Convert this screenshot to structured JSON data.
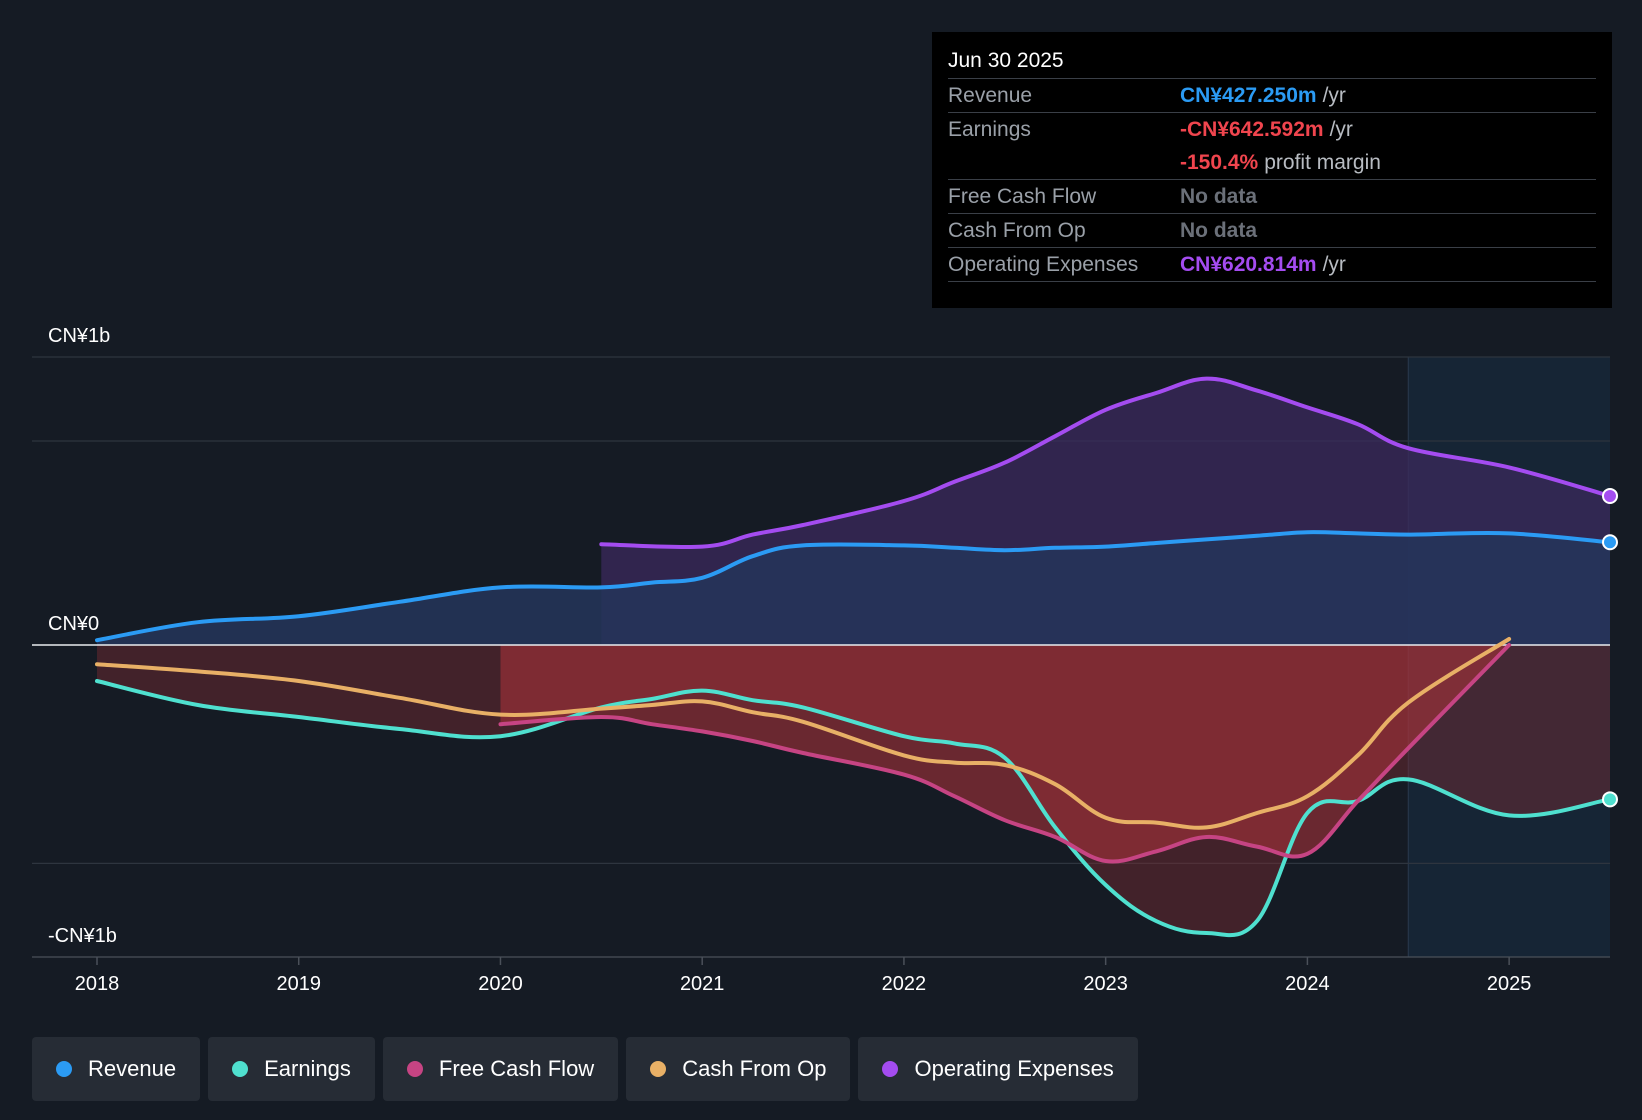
{
  "tooltip": {
    "date": "Jun 30 2025",
    "rows": [
      {
        "label": "Revenue",
        "value": "CN¥427.250m",
        "unit": "/yr",
        "color": "#2b9bf4"
      },
      {
        "label": "Earnings",
        "value": "-CN¥642.592m",
        "unit": "/yr",
        "color": "#f0454e"
      },
      {
        "label": "",
        "value": "-150.4%",
        "unit": "profit margin",
        "color": "#f0454e"
      },
      {
        "label": "Free Cash Flow",
        "value": "No data",
        "unit": "",
        "color": "#6b7079"
      },
      {
        "label": "Cash From Op",
        "value": "No data",
        "unit": "",
        "color": "#6b7079"
      },
      {
        "label": "Operating Expenses",
        "value": "CN¥620.814m",
        "unit": "/yr",
        "color": "#a44cf0"
      }
    ]
  },
  "legend": [
    {
      "label": "Revenue",
      "color": "#2b9bf4"
    },
    {
      "label": "Earnings",
      "color": "#4fe0cf"
    },
    {
      "label": "Free Cash Flow",
      "color": "#c64483"
    },
    {
      "label": "Cash From Op",
      "color": "#e8b066"
    },
    {
      "label": "Operating Expenses",
      "color": "#a44cf0"
    }
  ],
  "chart_data": {
    "type": "line",
    "title": "",
    "currency": "CNY",
    "y_unit": "CN¥ millions",
    "ylim": [
      -1300,
      1200
    ],
    "y_tick_labels": [
      {
        "value": 1200,
        "label": "CN¥1b"
      },
      {
        "value": 0,
        "label": "CN¥0"
      },
      {
        "value": -1300,
        "label": "-CN¥1b"
      }
    ],
    "x_range": [
      2017.68,
      2025.5
    ],
    "x_ticks": [
      2018,
      2019,
      2020,
      2021,
      2022,
      2023,
      2024,
      2025
    ],
    "forecast_start": 2024.5,
    "series": [
      {
        "name": "Revenue",
        "color": "#2b9bf4",
        "x": [
          2018,
          2018.5,
          2019,
          2019.5,
          2020,
          2020.5,
          2020.75,
          2021,
          2021.25,
          2021.5,
          2022,
          2022.25,
          2022.5,
          2022.75,
          2023,
          2023.25,
          2023.5,
          2023.75,
          2024,
          2024.25,
          2024.5,
          2025,
          2025.5
        ],
        "y": [
          20,
          95,
          120,
          180,
          240,
          240,
          260,
          280,
          370,
          415,
          415,
          405,
          395,
          405,
          410,
          425,
          440,
          455,
          470,
          465,
          460,
          465,
          428
        ]
      },
      {
        "name": "Earnings",
        "color": "#4fe0cf",
        "x": [
          2018,
          2018.5,
          2019,
          2019.5,
          2020,
          2020.5,
          2020.75,
          2021,
          2021.25,
          2021.5,
          2022,
          2022.25,
          2022.5,
          2022.75,
          2023,
          2023.25,
          2023.5,
          2023.75,
          2024,
          2024.25,
          2024.5,
          2025,
          2025.5
        ],
        "y": [
          -150,
          -250,
          -300,
          -350,
          -380,
          -260,
          -225,
          -190,
          -230,
          -260,
          -380,
          -410,
          -470,
          -760,
          -1000,
          -1150,
          -1200,
          -1150,
          -700,
          -650,
          -560,
          -710,
          -643
        ]
      },
      {
        "name": "Free Cash Flow",
        "color": "#c64483",
        "x": [
          2020,
          2020.5,
          2020.75,
          2021,
          2021.25,
          2021.5,
          2022,
          2022.25,
          2022.5,
          2022.75,
          2023,
          2023.25,
          2023.5,
          2023.75,
          2024,
          2024.25,
          2024.5,
          2025
        ],
        "y": [
          -330,
          -300,
          -330,
          -360,
          -400,
          -450,
          -540,
          -630,
          -730,
          -800,
          -900,
          -860,
          -800,
          -840,
          -870,
          -650,
          -430,
          0
        ]
      },
      {
        "name": "Cash From Op",
        "color": "#e8b066",
        "x": [
          2018,
          2018.5,
          2019,
          2019.5,
          2020,
          2020.5,
          2020.75,
          2021,
          2021.25,
          2021.5,
          2022,
          2022.25,
          2022.5,
          2022.75,
          2023,
          2023.25,
          2023.5,
          2023.75,
          2024,
          2024.25,
          2024.5,
          2025
        ],
        "y": [
          -80,
          -110,
          -150,
          -220,
          -290,
          -265,
          -250,
          -235,
          -280,
          -320,
          -460,
          -490,
          -500,
          -580,
          -720,
          -740,
          -760,
          -700,
          -630,
          -460,
          -240,
          25
        ]
      },
      {
        "name": "Operating Expenses",
        "color": "#a44cf0",
        "x": [
          2020.5,
          2021,
          2021.25,
          2021.5,
          2022,
          2022.25,
          2022.5,
          2022.75,
          2023,
          2023.25,
          2023.5,
          2023.75,
          2024,
          2024.25,
          2024.5,
          2025,
          2025.5
        ],
        "y": [
          420,
          410,
          460,
          500,
          600,
          680,
          760,
          870,
          980,
          1050,
          1110,
          1060,
          990,
          920,
          820,
          740,
          621
        ]
      }
    ]
  }
}
